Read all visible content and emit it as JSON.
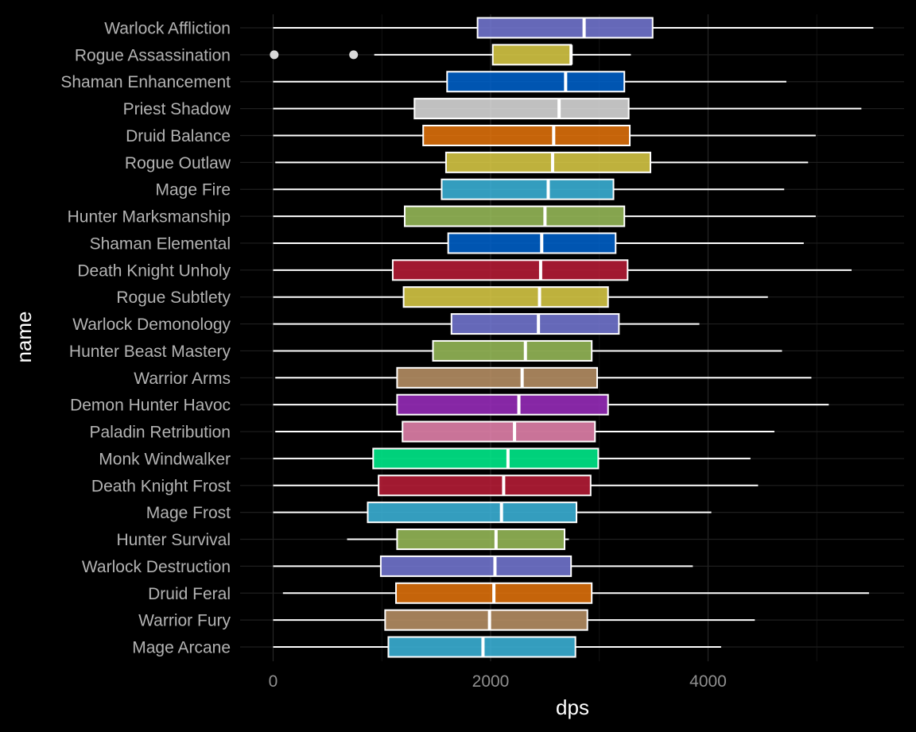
{
  "chart_data": {
    "type": "boxplot",
    "orientation": "horizontal",
    "xlabel": "dps",
    "ylabel": "name",
    "xlim": [
      -300,
      5780
    ],
    "x_ticks": [
      0,
      2000,
      4000
    ],
    "x_tick_labels": [
      "0",
      "2000",
      "4000"
    ],
    "grid": "vertical major and minor gridlines plus horizontal category lines, very faint",
    "background": "#000000",
    "categories": [
      {
        "name": "Warlock Affliction",
        "color": "#7b7fe0",
        "whisker_low": 0,
        "q1": 1880,
        "median": 2860,
        "q3": 3490,
        "whisker_high": 5520,
        "outliers": []
      },
      {
        "name": "Rogue Assassination",
        "color": "#e8d84a",
        "whisker_low": 930,
        "q1": 2020,
        "median": 2740,
        "q3": 2740,
        "whisker_high": 3290,
        "outliers": [
          10,
          740
        ]
      },
      {
        "name": "Shaman Enhancement",
        "color": "#0068d8",
        "whisker_low": 0,
        "q1": 1600,
        "median": 2690,
        "q3": 3230,
        "whisker_high": 4720,
        "outliers": []
      },
      {
        "name": "Priest Shadow",
        "color": "#eaeaea",
        "whisker_low": 0,
        "q1": 1300,
        "median": 2630,
        "q3": 3270,
        "whisker_high": 5410,
        "outliers": []
      },
      {
        "name": "Druid Balance",
        "color": "#f07a0c",
        "whisker_low": 0,
        "q1": 1380,
        "median": 2580,
        "q3": 3280,
        "whisker_high": 4990,
        "outliers": []
      },
      {
        "name": "Rogue Outlaw",
        "color": "#e8d84a",
        "whisker_low": 20,
        "q1": 1590,
        "median": 2570,
        "q3": 3470,
        "whisker_high": 4920,
        "outliers": []
      },
      {
        "name": "Mage Fire",
        "color": "#3fc0e8",
        "whisker_low": 0,
        "q1": 1550,
        "median": 2530,
        "q3": 3130,
        "whisker_high": 4700,
        "outliers": []
      },
      {
        "name": "Hunter Marksmanship",
        "color": "#a2c85f",
        "whisker_low": 0,
        "q1": 1210,
        "median": 2500,
        "q3": 3230,
        "whisker_high": 4990,
        "outliers": []
      },
      {
        "name": "Shaman Elemental",
        "color": "#0068d8",
        "whisker_low": 0,
        "q1": 1610,
        "median": 2470,
        "q3": 3150,
        "whisker_high": 4880,
        "outliers": []
      },
      {
        "name": "Death Knight Unholy",
        "color": "#c41e3a",
        "whisker_low": 0,
        "q1": 1100,
        "median": 2460,
        "q3": 3260,
        "whisker_high": 5320,
        "outliers": []
      },
      {
        "name": "Rogue Subtlety",
        "color": "#e8d84a",
        "whisker_low": 0,
        "q1": 1200,
        "median": 2450,
        "q3": 3080,
        "whisker_high": 4550,
        "outliers": []
      },
      {
        "name": "Warlock Demonology",
        "color": "#7b7fe0",
        "whisker_low": 0,
        "q1": 1640,
        "median": 2440,
        "q3": 3180,
        "whisker_high": 3920,
        "outliers": []
      },
      {
        "name": "Hunter Beast Mastery",
        "color": "#a2c85f",
        "whisker_low": 0,
        "q1": 1470,
        "median": 2320,
        "q3": 2930,
        "whisker_high": 4680,
        "outliers": []
      },
      {
        "name": "Warrior Arms",
        "color": "#c69b6d",
        "whisker_low": 20,
        "q1": 1140,
        "median": 2290,
        "q3": 2980,
        "whisker_high": 4950,
        "outliers": []
      },
      {
        "name": "Demon Hunter Havoc",
        "color": "#a330c9",
        "whisker_low": 0,
        "q1": 1140,
        "median": 2260,
        "q3": 3080,
        "whisker_high": 5110,
        "outliers": []
      },
      {
        "name": "Paladin Retribution",
        "color": "#f58cba",
        "whisker_low": 20,
        "q1": 1190,
        "median": 2220,
        "q3": 2960,
        "whisker_high": 4610,
        "outliers": []
      },
      {
        "name": "Monk Windwalker",
        "color": "#00ff96",
        "whisker_low": 0,
        "q1": 920,
        "median": 2160,
        "q3": 2990,
        "whisker_high": 4390,
        "outliers": []
      },
      {
        "name": "Death Knight Frost",
        "color": "#c41e3a",
        "whisker_low": 0,
        "q1": 970,
        "median": 2120,
        "q3": 2920,
        "whisker_high": 4460,
        "outliers": []
      },
      {
        "name": "Mage Frost",
        "color": "#3fc0e8",
        "whisker_low": 0,
        "q1": 870,
        "median": 2100,
        "q3": 2790,
        "whisker_high": 4030,
        "outliers": []
      },
      {
        "name": "Hunter Survival",
        "color": "#a2c85f",
        "whisker_low": 680,
        "q1": 1140,
        "median": 2050,
        "q3": 2680,
        "whisker_high": 2720,
        "outliers": []
      },
      {
        "name": "Warlock Destruction",
        "color": "#7b7fe0",
        "whisker_low": 0,
        "q1": 990,
        "median": 2040,
        "q3": 2740,
        "whisker_high": 3860,
        "outliers": []
      },
      {
        "name": "Druid Feral",
        "color": "#f07a0c",
        "whisker_low": 90,
        "q1": 1130,
        "median": 2030,
        "q3": 2930,
        "whisker_high": 5480,
        "outliers": []
      },
      {
        "name": "Warrior Fury",
        "color": "#c69b6d",
        "whisker_low": 0,
        "q1": 1030,
        "median": 1990,
        "q3": 2890,
        "whisker_high": 4430,
        "outliers": []
      },
      {
        "name": "Mage Arcane",
        "color": "#3fc0e8",
        "whisker_low": 0,
        "q1": 1060,
        "median": 1930,
        "q3": 2780,
        "whisker_high": 4120,
        "outliers": []
      }
    ]
  }
}
